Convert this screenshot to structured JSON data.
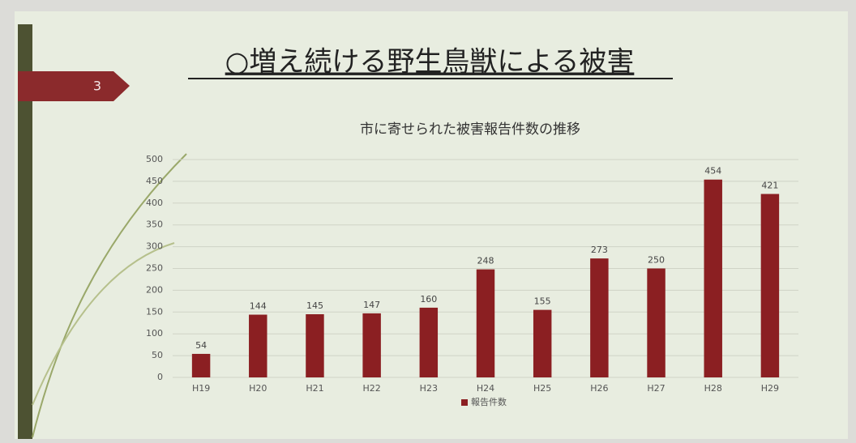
{
  "slide": {
    "title": "○増え続ける野生鳥獣による被害",
    "page": 3
  },
  "chart_data": {
    "type": "bar",
    "title": "市に寄せられた被害報告件数の推移",
    "categories": [
      "H19",
      "H20",
      "H21",
      "H22",
      "H23",
      "H24",
      "H25",
      "H26",
      "H27",
      "H28",
      "H29"
    ],
    "series": [
      {
        "name": "報告件数",
        "color": "#8b1f22",
        "values": [
          54,
          144,
          145,
          147,
          160,
          248,
          155,
          273,
          250,
          454,
          421
        ]
      }
    ],
    "ylim": [
      0,
      500
    ],
    "yticks": [
      0,
      50,
      100,
      150,
      200,
      250,
      300,
      350,
      400,
      450,
      500
    ],
    "grid": true,
    "legend": "bottom"
  }
}
